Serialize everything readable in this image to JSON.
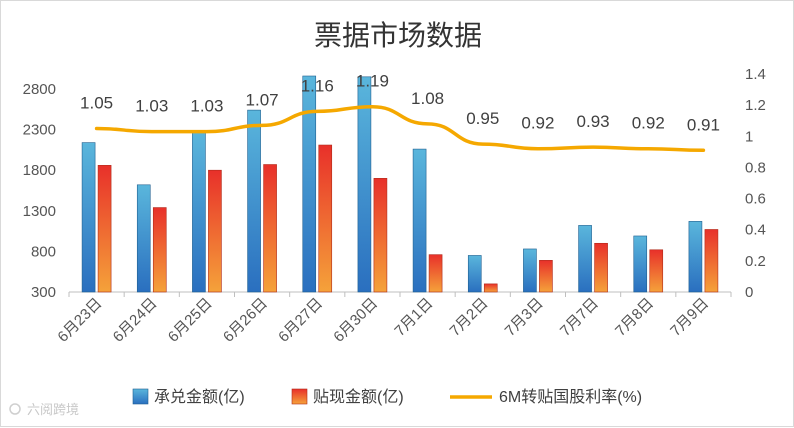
{
  "chart_data": {
    "type": "bar",
    "title": "票据市场数据",
    "categories": [
      "6月23日",
      "6月24日",
      "6月25日",
      "6月26日",
      "6月27日",
      "6月30日",
      "7月1日",
      "7月2日",
      "7月3日",
      "7月7日",
      "7月8日",
      "7月9日"
    ],
    "series": [
      {
        "name": "承兑金额(亿)",
        "kind": "bar",
        "axis": "left",
        "color": "#3e9bc6",
        "values": [
          2140,
          1620,
          2270,
          2540,
          2960,
          2950,
          2060,
          750,
          830,
          1120,
          990,
          1170
        ]
      },
      {
        "name": "贴现金额(亿)",
        "kind": "bar",
        "axis": "left",
        "color": "#e8392a",
        "values": [
          1860,
          1340,
          1800,
          1870,
          2110,
          1700,
          760,
          400,
          690,
          900,
          820,
          1070
        ]
      },
      {
        "name": "6M转贴国股利率(%)",
        "kind": "line",
        "axis": "right",
        "color": "#f5a800",
        "values": [
          1.05,
          1.03,
          1.03,
          1.07,
          1.16,
          1.19,
          1.08,
          0.95,
          0.92,
          0.93,
          0.92,
          0.91
        ],
        "labels": [
          "1.05",
          "1.03",
          "1.03",
          "1.07",
          "1.16",
          "1.19",
          "1.08",
          "0.95",
          "0.92",
          "0.93",
          "0.92",
          "0.91"
        ]
      }
    ],
    "left_axis": {
      "min": 300,
      "max": 2800,
      "ticks": [
        "300",
        "800",
        "1300",
        "1800",
        "2300",
        "2800"
      ]
    },
    "right_axis": {
      "min": 0,
      "max": 1.4,
      "ticks": [
        "0",
        "0.2",
        "0.4",
        "0.6",
        "0.8",
        "1",
        "1.2",
        "1.4"
      ]
    },
    "legend_position": "bottom"
  },
  "watermark": "六阅跨境"
}
